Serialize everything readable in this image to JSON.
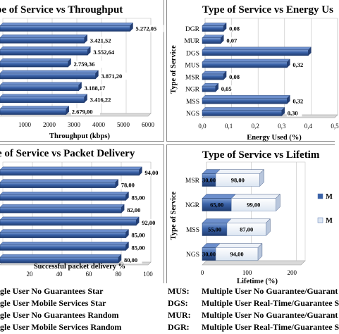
{
  "palette": {
    "bar": "#3a62a8",
    "bar_dark": "#203c70",
    "panel_bg": "#ffffff",
    "border": "#7f7f7f",
    "light_bar": "#dce6f2"
  },
  "chart_data": [
    {
      "type": "bar",
      "orientation": "horizontal",
      "title": "pe of Service vs Throughput",
      "xlabel": "Throughput (kbps)",
      "ylabel": "",
      "categories": [
        "",
        "",
        "",
        "",
        "",
        "",
        "",
        ""
      ],
      "values": [
        5272.05,
        3421.52,
        3552.64,
        2759.36,
        3871.2,
        3188.17,
        3416.22,
        2679.0
      ],
      "data_labels": [
        "5.272,05",
        "3.421,52",
        "3.552,64",
        "2.759,36",
        "3.871,20",
        "3.188,17",
        "3.416,22",
        "2.679,00"
      ],
      "xticks": [
        "1000",
        "2000",
        "3000",
        "4000",
        "5000",
        "6000"
      ],
      "xlim": [
        0,
        6000
      ],
      "grid": true
    },
    {
      "type": "bar",
      "orientation": "horizontal",
      "title": "Type of Service vs Energy Us",
      "xlabel": "Energy Used (%)",
      "ylabel": "Type of Service",
      "categories": [
        "DGR",
        "MUR",
        "DGS",
        "MUS",
        "MSR",
        "NGR",
        "MSS",
        "NGS"
      ],
      "values": [
        0.08,
        0.07,
        0.4,
        0.32,
        0.08,
        0.05,
        0.32,
        0.3
      ],
      "data_labels": [
        "0,08",
        "0,07",
        "",
        "0,32",
        "0,08",
        "0,05",
        "0,32",
        "0,30"
      ],
      "xticks": [
        "0,0",
        "0,1",
        "0,2",
        "0,3",
        "0,4",
        "0,5"
      ],
      "xlim": [
        0,
        0.5
      ],
      "grid": true
    },
    {
      "type": "bar",
      "orientation": "horizontal",
      "title": "e of Service vs Packet Delivery",
      "xlabel": "Successful packet delivery %",
      "ylabel": "",
      "categories": [
        "",
        "",
        "",
        "",
        "",
        "",
        "",
        ""
      ],
      "values": [
        94.0,
        78.0,
        85.0,
        82.0,
        92.0,
        85.0,
        85.0,
        80.0
      ],
      "data_labels": [
        "94,00",
        "78,00",
        "85,00",
        "82,00",
        "92,00",
        "85,00",
        "85,00",
        "80,00"
      ],
      "xticks": [
        "20",
        "40",
        "60",
        "80",
        "100"
      ],
      "xlim": [
        0,
        100
      ],
      "grid": true
    },
    {
      "type": "bar",
      "orientation": "horizontal",
      "stacked": true,
      "title": "Type of Service vs Lifetim",
      "xlabel": "Lifetime (%)",
      "ylabel": "Type of Service",
      "categories": [
        "MSR",
        "NGR",
        "MSS",
        "NGS"
      ],
      "series": [
        {
          "values": [
            30.0,
            65.0,
            55.0,
            30.0
          ],
          "labels": [
            "30,00",
            "65,00",
            "55,00",
            "30,00"
          ]
        },
        {
          "values": [
            98.0,
            99.0,
            87.0,
            94.0
          ],
          "labels": [
            "98,00",
            "99,00",
            "87,00",
            "94,00"
          ]
        }
      ],
      "legend_entries": [
        "M",
        "M"
      ],
      "legend_position": "right",
      "xticks": [
        "0",
        "100",
        "200"
      ],
      "xlim": [
        0,
        220
      ],
      "grid": true
    }
  ],
  "legend": {
    "rows": [
      {
        "left": "gle User No Guarantees Star",
        "code": "MUS:",
        "right": "Multiple User No Guarantee/Guarant"
      },
      {
        "left": "gle User Mobile Services Star",
        "code": "DGS:",
        "right": "Multiple User Real-Time/Guarantee S"
      },
      {
        "left": "gle User No Guarantees Random",
        "code": "MUR:",
        "right": "Multiple User No Guarantee/Guarant"
      },
      {
        "left": "gle User Mobile Services Random",
        "code": "DGR:",
        "right": "Multiple User Real-Time/Guarantee S"
      }
    ]
  }
}
